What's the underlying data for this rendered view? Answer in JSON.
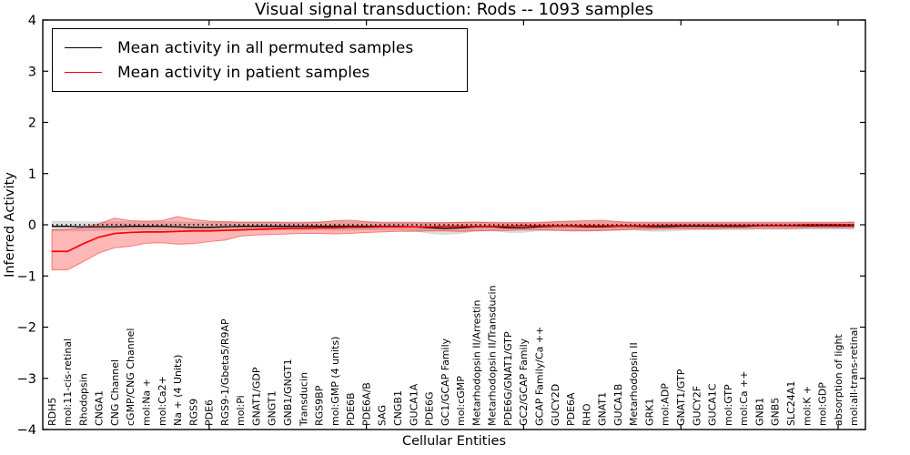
{
  "chart_data": {
    "type": "line",
    "title": "Visual signal transduction: Rods -- 1093 samples",
    "xlabel": "Cellular Entities",
    "ylabel": "Inferred Activity",
    "ylim": [
      -4,
      4
    ],
    "yticks": [
      4,
      3,
      2,
      1,
      0,
      -1,
      -2,
      -3,
      -4
    ],
    "x_major_ticks": [
      10,
      20,
      30,
      40,
      50
    ],
    "grid": false,
    "legend_position": "upper left",
    "zero_line": "black dotted horizontal reference at y=0",
    "categories": [
      "RDH5",
      "mol:11-cis-retinal",
      "Rhodopsin",
      "CNGA1",
      "CNG Channel",
      "cGMP/CNG Channel",
      "mol:Na +",
      "mol:Ca2+",
      "Na + (4 Units)",
      "RGS9",
      "PDE6",
      "RGS9-1/Gbeta5/R9AP",
      "mol:Pi",
      "GNAT1/GDP",
      "GNGT1",
      "GNB1/GNGT1",
      "Transducin",
      "RGS9BP",
      "mol:GMP (4 units)",
      "PDE6B",
      "PDE6A/B",
      "SAG",
      "CNGB1",
      "GUCA1A",
      "PDE6G",
      "GC1/GCAP Family",
      "mol:cGMP",
      "Metarhodopsin II/Arrestin",
      "Metarhodopsin II/Transducin",
      "PDE6G/GNAT1/GTP",
      "GC2/GCAP Family",
      "GCAP Family/Ca ++",
      "GUCY2D",
      "PDE6A",
      "RHO",
      "GNAT1",
      "GUCA1B",
      "Metarhodopsin II",
      "GRK1",
      "mol:ADP",
      "GNAT1/GTP",
      "GUCY2F",
      "GUCA1C",
      "mol:GTP",
      "mol:Ca ++",
      "GNB1",
      "GNB5",
      "SLC24A1",
      "mol:K +",
      "mol:GDP",
      "absorption of light",
      "mol:all-trans-retinal"
    ],
    "series": [
      {
        "name": "Mean activity in all permuted samples",
        "color": "#000000",
        "band_fill": "rgba(0,0,0,0.13)",
        "band_edge": "rgba(0,0,0,0.07)",
        "values": [
          -0.03,
          -0.03,
          -0.04,
          -0.04,
          -0.04,
          -0.03,
          -0.03,
          -0.03,
          -0.04,
          -0.05,
          -0.05,
          -0.04,
          -0.03,
          -0.03,
          -0.03,
          -0.03,
          -0.03,
          -0.03,
          -0.03,
          -0.03,
          -0.03,
          -0.03,
          -0.03,
          -0.04,
          -0.06,
          -0.07,
          -0.06,
          -0.04,
          -0.04,
          -0.06,
          -0.06,
          -0.04,
          -0.03,
          -0.03,
          -0.04,
          -0.04,
          -0.03,
          -0.03,
          -0.04,
          -0.04,
          -0.03,
          -0.03,
          -0.03,
          -0.03,
          -0.03,
          -0.02,
          -0.02,
          -0.02,
          -0.02,
          -0.02,
          -0.02,
          -0.02
        ],
        "band_upper": [
          0.07,
          0.07,
          0.06,
          0.06,
          0.06,
          0.06,
          0.06,
          0.06,
          0.06,
          0.05,
          0.05,
          0.06,
          0.06,
          0.06,
          0.06,
          0.06,
          0.06,
          0.06,
          0.06,
          0.06,
          0.06,
          0.06,
          0.06,
          0.06,
          0.05,
          0.05,
          0.05,
          0.06,
          0.06,
          0.05,
          0.05,
          0.06,
          0.06,
          0.06,
          0.06,
          0.06,
          0.06,
          0.06,
          0.06,
          0.06,
          0.06,
          0.06,
          0.06,
          0.06,
          0.06,
          0.06,
          0.06,
          0.06,
          0.06,
          0.06,
          0.06,
          0.06
        ],
        "band_lower": [
          -0.12,
          -0.12,
          -0.12,
          -0.11,
          -0.11,
          -0.1,
          -0.1,
          -0.1,
          -0.11,
          -0.13,
          -0.13,
          -0.12,
          -0.1,
          -0.1,
          -0.1,
          -0.1,
          -0.1,
          -0.1,
          -0.11,
          -0.11,
          -0.1,
          -0.1,
          -0.1,
          -0.12,
          -0.17,
          -0.19,
          -0.17,
          -0.12,
          -0.12,
          -0.15,
          -0.15,
          -0.12,
          -0.1,
          -0.11,
          -0.12,
          -0.12,
          -0.11,
          -0.1,
          -0.13,
          -0.13,
          -0.11,
          -0.1,
          -0.1,
          -0.1,
          -0.1,
          -0.09,
          -0.09,
          -0.09,
          -0.09,
          -0.09,
          -0.09,
          -0.09
        ]
      },
      {
        "name": "Mean activity in patient samples",
        "color": "#ff0000",
        "band_fill": "rgba(255,0,0,0.28)",
        "band_edge": "rgba(255,0,0,0.45)",
        "values": [
          -0.52,
          -0.52,
          -0.37,
          -0.24,
          -0.17,
          -0.15,
          -0.14,
          -0.14,
          -0.13,
          -0.12,
          -0.12,
          -0.11,
          -0.1,
          -0.09,
          -0.08,
          -0.07,
          -0.07,
          -0.06,
          -0.06,
          -0.05,
          -0.05,
          -0.04,
          -0.04,
          -0.04,
          -0.04,
          -0.03,
          -0.03,
          -0.03,
          -0.03,
          -0.03,
          -0.02,
          -0.02,
          -0.02,
          -0.02,
          -0.02,
          -0.02,
          -0.02,
          -0.02,
          -0.02,
          -0.01,
          -0.01,
          -0.01,
          -0.01,
          -0.01,
          -0.01,
          -0.01,
          -0.01,
          -0.01,
          0.0,
          0.0,
          0.0,
          0.0
        ],
        "band_upper": [
          -0.1,
          -0.09,
          -0.05,
          0.02,
          0.13,
          0.08,
          0.07,
          0.08,
          0.16,
          0.1,
          0.07,
          0.06,
          0.05,
          0.05,
          0.05,
          0.04,
          0.04,
          0.05,
          0.08,
          0.09,
          0.06,
          0.04,
          0.04,
          0.04,
          0.04,
          0.04,
          0.05,
          0.05,
          0.04,
          0.04,
          0.04,
          0.04,
          0.06,
          0.07,
          0.08,
          0.09,
          0.06,
          0.04,
          0.04,
          0.04,
          0.04,
          0.04,
          0.04,
          0.04,
          0.04,
          0.04,
          0.04,
          0.04,
          0.04,
          0.04,
          0.04,
          0.05
        ],
        "band_lower": [
          -0.88,
          -0.88,
          -0.72,
          -0.55,
          -0.45,
          -0.42,
          -0.36,
          -0.35,
          -0.38,
          -0.37,
          -0.33,
          -0.3,
          -0.22,
          -0.2,
          -0.19,
          -0.18,
          -0.17,
          -0.17,
          -0.18,
          -0.17,
          -0.15,
          -0.14,
          -0.13,
          -0.13,
          -0.12,
          -0.12,
          -0.13,
          -0.12,
          -0.11,
          -0.11,
          -0.1,
          -0.1,
          -0.11,
          -0.12,
          -0.12,
          -0.11,
          -0.1,
          -0.09,
          -0.09,
          -0.08,
          -0.08,
          -0.08,
          -0.08,
          -0.07,
          -0.07,
          -0.07,
          -0.07,
          -0.07,
          -0.06,
          -0.06,
          -0.06,
          -0.06
        ]
      }
    ]
  }
}
